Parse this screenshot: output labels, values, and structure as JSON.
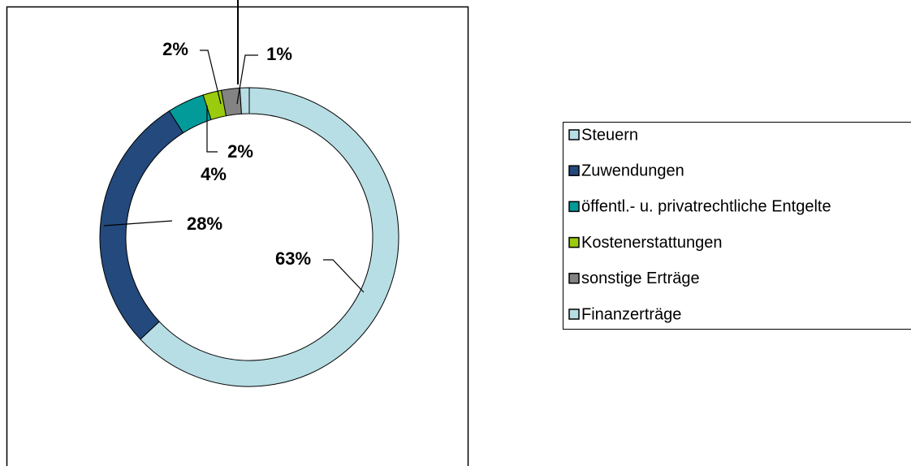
{
  "chart_data": {
    "type": "donut",
    "categories": [
      "Steuern",
      "Zuwendungen",
      "öffentl.- u. privatrechtliche Entgelte",
      "Kostenerstattungen",
      "sonstige Erträge",
      "Finanzerträge"
    ],
    "values": [
      63,
      28,
      4,
      2,
      2,
      1
    ],
    "value_labels": [
      "63%",
      "28%",
      "4%",
      "2%",
      "2%",
      "1%"
    ],
    "colors": [
      "#b7dee4",
      "#23497d",
      "#039a9a",
      "#9acb0c",
      "#838383",
      "#b7dee4"
    ],
    "legend": "right"
  }
}
